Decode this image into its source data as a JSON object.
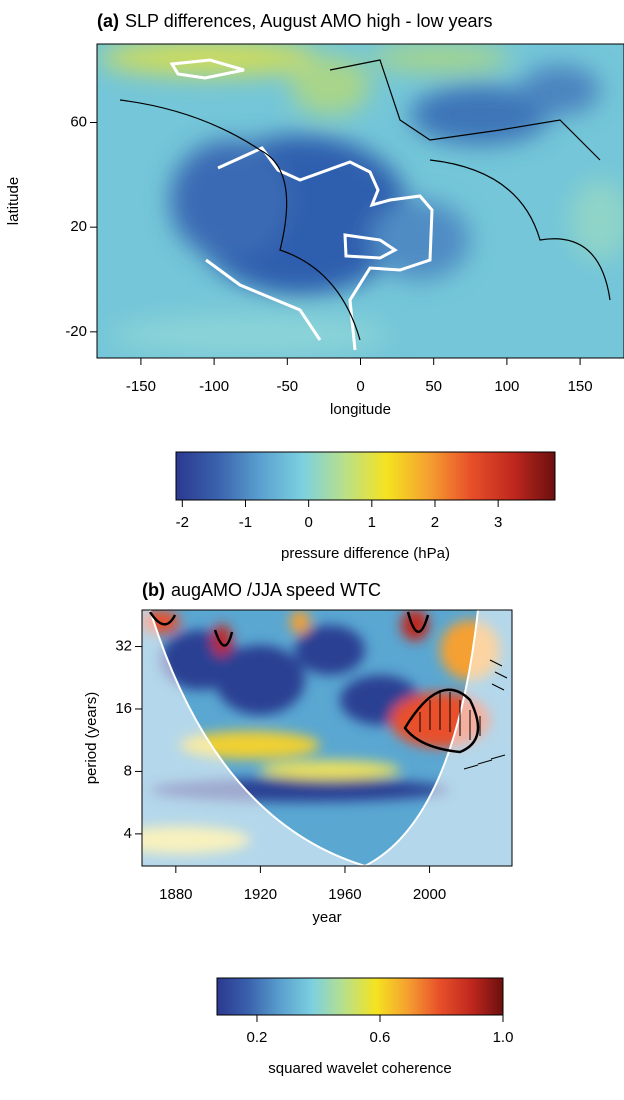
{
  "chart_data": [
    {
      "type": "heatmap",
      "title_prefix": "(a)",
      "title": "SLP differences, August AMO high - low years",
      "xlabel": "longitude",
      "ylabel": "latitude",
      "xlim": [
        -180,
        180
      ],
      "xticks": [
        -150,
        -100,
        -50,
        0,
        50,
        100,
        150
      ],
      "ylim": [
        -30,
        90
      ],
      "yticks": [
        -20,
        20,
        60
      ],
      "colorbar_label": "pressure difference (hPa)",
      "colorbar_lim": [
        -2.1,
        3.9
      ],
      "colorbar_ticks": [
        -2,
        -1,
        0,
        1,
        2,
        3
      ],
      "colormap": [
        "#2b3990",
        "#3a62ad",
        "#5aa0cf",
        "#7cd0e0",
        "#b8e08a",
        "#f5e320",
        "#f5a030",
        "#e8502a",
        "#c0281e",
        "#6b0f0f"
      ]
    },
    {
      "type": "wavelet",
      "title_prefix": "(b)",
      "title": "augAMO /JJA speed WTC",
      "xlabel": "year",
      "ylabel": "period (years)",
      "xlim": [
        1864,
        2039
      ],
      "xticks": [
        1880,
        1920,
        1960,
        2000
      ],
      "ylim": [
        2.8,
        48
      ],
      "yticks": [
        4,
        8,
        16,
        32
      ],
      "ylog": true,
      "colorbar_label": "squared wavelet coherence",
      "colorbar_lim": [
        0.07,
        1.0
      ],
      "colorbar_ticks": [
        0.2,
        0.6,
        {
          "value": 1.0,
          "label": "1.0"
        }
      ],
      "colormap": [
        "#2b3990",
        "#3a62ad",
        "#5aa0cf",
        "#7cd0e0",
        "#b8e08a",
        "#f5e320",
        "#f5a030",
        "#e8502a",
        "#c0281e",
        "#6b0f0f"
      ]
    }
  ]
}
